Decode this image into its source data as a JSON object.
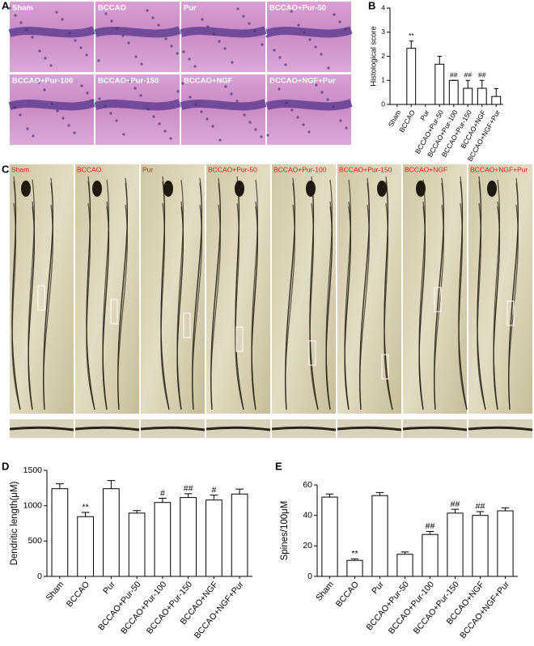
{
  "panels": {
    "A": {
      "label": "A",
      "images": [
        "Sham",
        "BCCAO",
        "Pur",
        "BCCAO+Pur-50",
        "BCCAO+Pur-100",
        "BCCAO+Pur-150",
        "BCCAO+NGF",
        "BCCAO+NGF+Pur"
      ]
    },
    "C": {
      "label": "C",
      "images": [
        "Sham",
        "BCCAO",
        "Pur",
        "BCCAO+Pur-50",
        "BCCAO+Pur-100",
        "BCCAO+Pur-150",
        "BCCAO+NGF",
        "BCCAO+NGF+Pur"
      ]
    }
  },
  "chart_data": [
    {
      "type": "bar",
      "label": "B",
      "ylabel": "Histological score",
      "categories": [
        "Sham",
        "BCCAO",
        "Pur",
        "BCCAO+Pur-50",
        "BCCAO+Pur-100",
        "BCCAO+Pur-150",
        "BCCAO+NGF",
        "BCCAO+NGF+Pur"
      ],
      "values": [
        0,
        2.33,
        0,
        1.67,
        1.0,
        0.67,
        0.67,
        0.33
      ],
      "errors": [
        0,
        0.3,
        0,
        0.33,
        0,
        0.33,
        0.33,
        0.33
      ],
      "annotations": [
        null,
        "**",
        null,
        null,
        "##",
        "##",
        "##",
        null
      ],
      "ylim": [
        0,
        4
      ],
      "yticks": [
        0,
        1,
        2,
        3,
        4
      ],
      "color": "#ffffff"
    },
    {
      "type": "bar",
      "label": "D",
      "ylabel": "Dendritic length(μM)",
      "categories": [
        "Sham",
        "BCCAO",
        "Pur",
        "BCCAO+Pur-50",
        "BCCAO+Pur-100",
        "BCCAO+Pur-150",
        "BCCAO+NGF",
        "BCCAO+NGF+Pur"
      ],
      "values": [
        1240,
        845,
        1240,
        895,
        1045,
        1115,
        1080,
        1165
      ],
      "errors": [
        70,
        60,
        115,
        35,
        60,
        55,
        70,
        70
      ],
      "annotations": [
        null,
        "**",
        null,
        null,
        "#",
        "##",
        "#",
        null
      ],
      "ylim": [
        0,
        1500
      ],
      "yticks": [
        0,
        500,
        1000,
        1500
      ],
      "color": "#ffffff"
    },
    {
      "type": "bar",
      "label": "E",
      "ylabel": "Spines/100μM",
      "categories": [
        "Sham",
        "BCCAO",
        "Pur",
        "BCCAO+Pur-50",
        "BCCAO+Pur-100",
        "BCCAO+Pur-150",
        "BCCAO+NGF",
        "BCCAO+NGF+Pur"
      ],
      "values": [
        52,
        10.5,
        53,
        14.5,
        27.5,
        41.5,
        40,
        43
      ],
      "errors": [
        2,
        1,
        2,
        1.5,
        2,
        2.5,
        2.5,
        2
      ],
      "annotations": [
        null,
        "**",
        null,
        null,
        "##",
        "##",
        "##",
        null
      ],
      "ylim": [
        0,
        60
      ],
      "yticks": [
        0,
        20,
        40,
        60
      ],
      "color": "#ffffff"
    }
  ]
}
